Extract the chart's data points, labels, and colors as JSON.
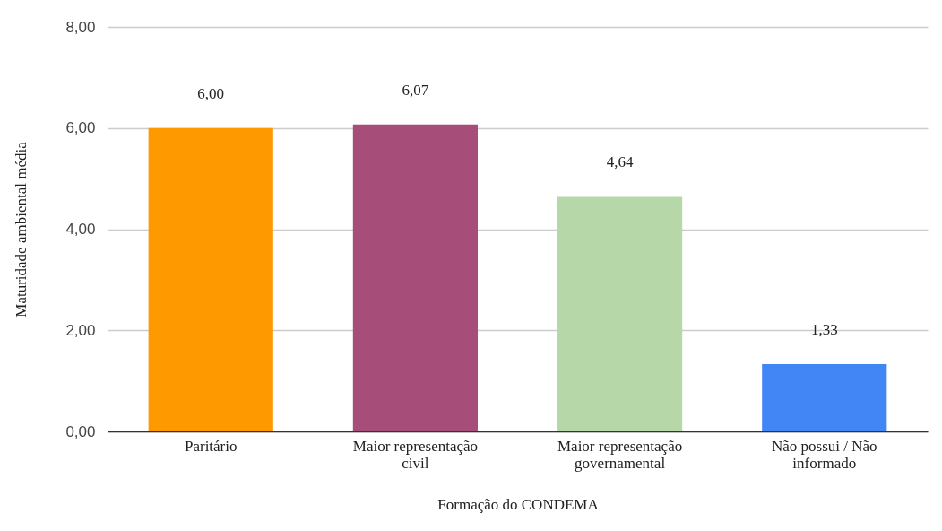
{
  "chart_data": {
    "type": "bar",
    "xlabel": "Formação do CONDEMA",
    "ylabel": "Maturidade ambiental média",
    "categories": [
      "Paritário",
      "Maior representação civil",
      "Maior representação governamental",
      "Não possui / Não informado"
    ],
    "values": [
      6.0,
      6.07,
      4.64,
      1.33
    ],
    "colors": [
      "#ff9900",
      "#a64d79",
      "#b6d7a8",
      "#4285f4"
    ],
    "value_labels": [
      "6,00",
      "6,07",
      "4,64",
      "1,33"
    ],
    "ylim": [
      0,
      8
    ],
    "yticks": [
      {
        "value": 0,
        "label": "0,00"
      },
      {
        "value": 2,
        "label": "2,00"
      },
      {
        "value": 4,
        "label": "4,00"
      },
      {
        "value": 6,
        "label": "6,00"
      },
      {
        "value": 8,
        "label": "8,00"
      }
    ],
    "grid": "y"
  }
}
